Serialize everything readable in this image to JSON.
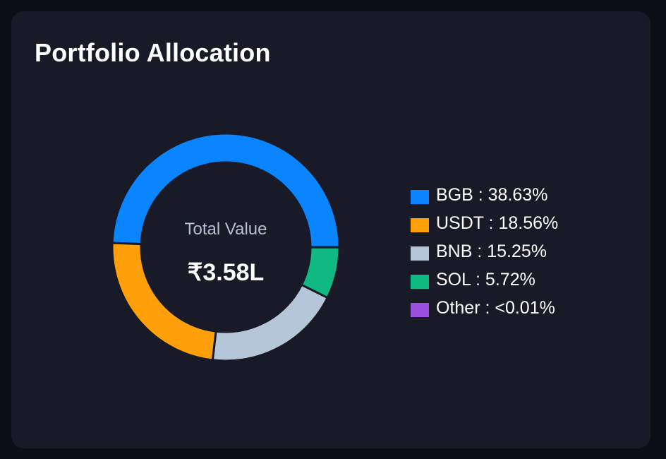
{
  "title": "Portfolio Allocation",
  "center": {
    "label": "Total Value",
    "value": "₹3.58L"
  },
  "chart_data": {
    "type": "pie",
    "variant": "donut",
    "categories": [
      "BGB",
      "USDT",
      "BNB",
      "SOL",
      "Other"
    ],
    "values": [
      38.63,
      18.56,
      15.25,
      5.72,
      0.01
    ],
    "labels": [
      "38.63%",
      "18.56%",
      "15.25%",
      "5.72%",
      "<0.01%"
    ],
    "colors": [
      "#0a84ff",
      "#ffa00a",
      "#b4c6d8",
      "#10b981",
      "#9b51e0"
    ],
    "legend": "right"
  },
  "legend": [
    {
      "text": "BGB : 38.63%"
    },
    {
      "text": "USDT : 18.56%"
    },
    {
      "text": "BNB : 15.25%"
    },
    {
      "text": "SOL : 5.72%"
    },
    {
      "text": "Other : <0.01%"
    }
  ]
}
